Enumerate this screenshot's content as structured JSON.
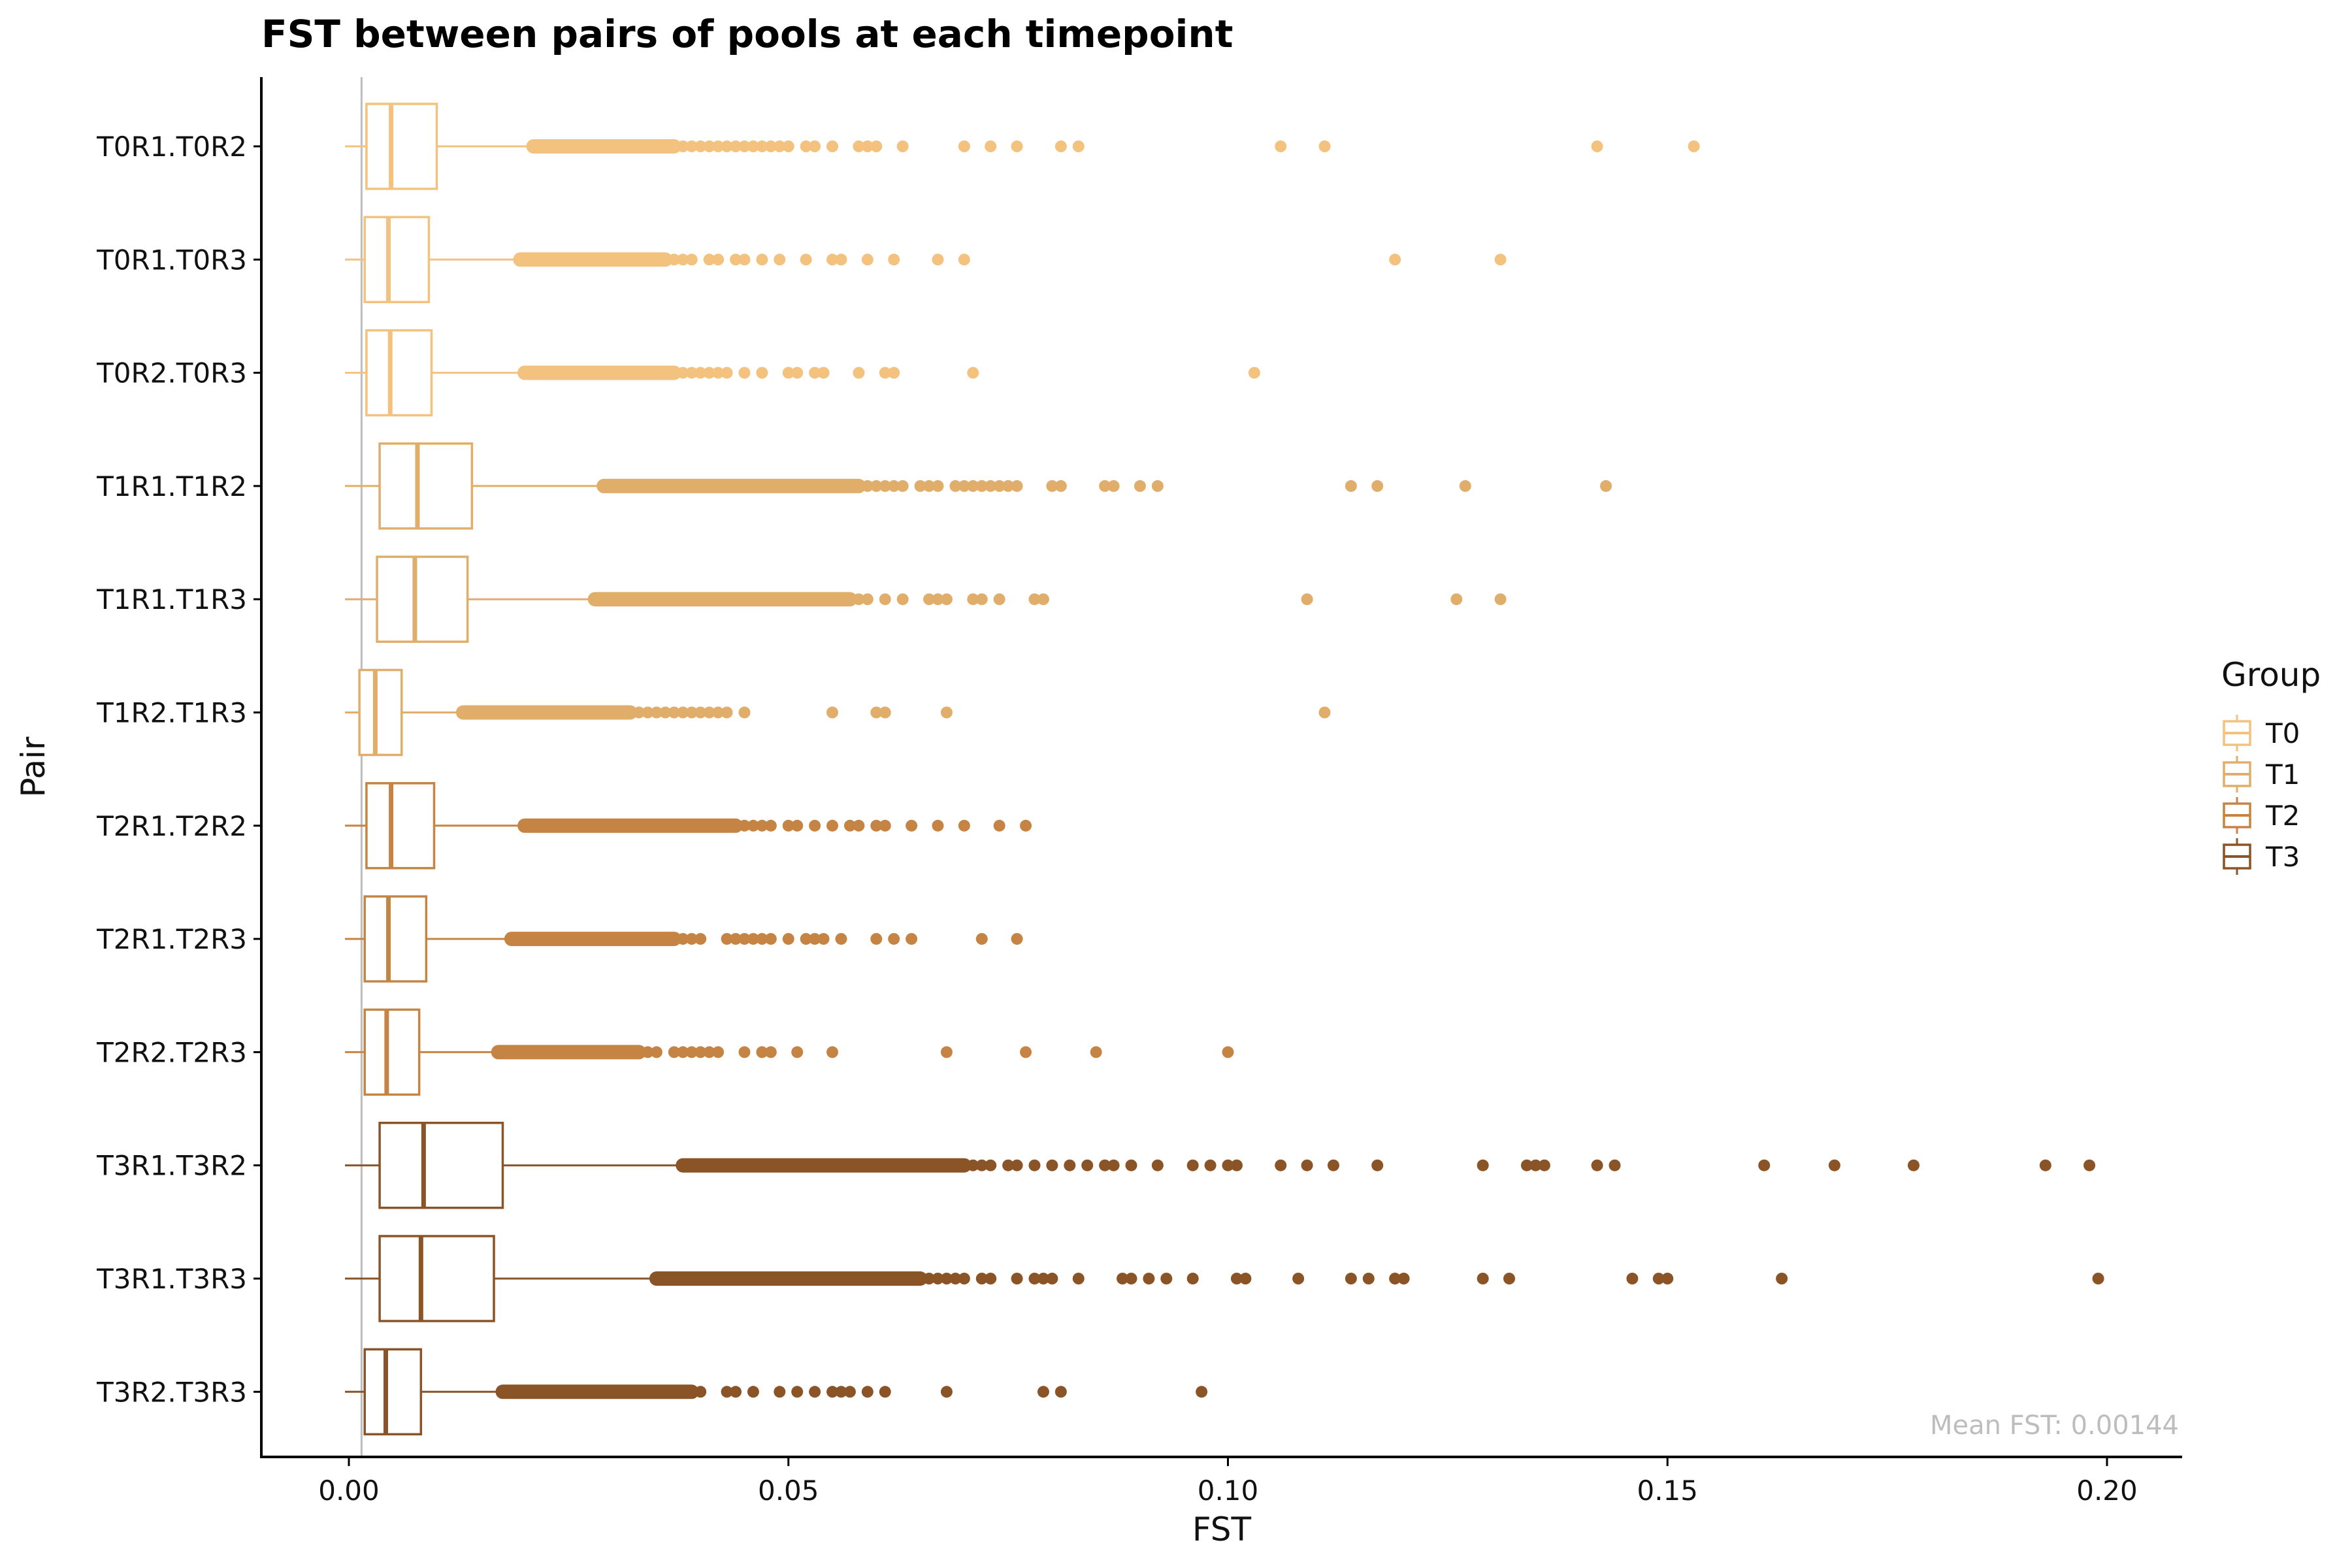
{
  "chart_data": {
    "type": "boxplot",
    "title": "FST between pairs of pools at each timepoint",
    "xlabel": "FST",
    "ylabel": "Pair",
    "xlim": [
      -0.01,
      0.21
    ],
    "xticks": [
      0.0,
      0.05,
      0.1,
      0.15,
      0.2
    ],
    "xtick_labels": [
      "0.00",
      "0.05",
      "0.10",
      "0.15",
      "0.20"
    ],
    "reference_line_x": 0.00144,
    "annotation": "Mean FST: 0.00144",
    "grid": false,
    "legend": {
      "title": "Group",
      "position": "right",
      "items": [
        {
          "label": "T0",
          "color": "#F2C27E"
        },
        {
          "label": "T1",
          "color": "#E0AD6A"
        },
        {
          "label": "T2",
          "color": "#C58443"
        },
        {
          "label": "T3",
          "color": "#8A5427"
        }
      ]
    },
    "categories": [
      "T0R1.T0R2",
      "T0R1.T0R3",
      "T0R2.T0R3",
      "T1R1.T1R2",
      "T1R1.T1R3",
      "T1R2.T1R3",
      "T2R1.T2R2",
      "T2R1.T2R3",
      "T2R2.T2R3",
      "T3R1.T3R2",
      "T3R1.T3R3",
      "T3R2.T3R3"
    ],
    "boxes": [
      {
        "pair": "T0R1.T0R2",
        "group": "T0",
        "min": 0.0,
        "q1": 0.002,
        "median": 0.0048,
        "q3": 0.01,
        "whisker_hi": 0.021,
        "dense_outliers": [
          0.021,
          0.037
        ],
        "outliers": [
          0.038,
          0.039,
          0.04,
          0.041,
          0.042,
          0.043,
          0.044,
          0.045,
          0.046,
          0.047,
          0.048,
          0.049,
          0.05,
          0.052,
          0.053,
          0.055,
          0.058,
          0.059,
          0.06,
          0.063,
          0.07,
          0.073,
          0.076,
          0.081,
          0.083,
          0.106,
          0.111,
          0.142,
          0.153
        ]
      },
      {
        "pair": "T0R1.T0R3",
        "group": "T0",
        "min": 0.0,
        "q1": 0.0018,
        "median": 0.0045,
        "q3": 0.0091,
        "whisker_hi": 0.0195,
        "dense_outliers": [
          0.0195,
          0.036
        ],
        "outliers": [
          0.037,
          0.038,
          0.039,
          0.041,
          0.042,
          0.044,
          0.045,
          0.047,
          0.049,
          0.052,
          0.055,
          0.056,
          0.059,
          0.062,
          0.067,
          0.07,
          0.119,
          0.131
        ]
      },
      {
        "pair": "T0R2.T0R3",
        "group": "T0",
        "min": 0.0,
        "q1": 0.002,
        "median": 0.0047,
        "q3": 0.0094,
        "whisker_hi": 0.02,
        "dense_outliers": [
          0.02,
          0.037
        ],
        "outliers": [
          0.038,
          0.039,
          0.04,
          0.041,
          0.042,
          0.043,
          0.045,
          0.047,
          0.05,
          0.051,
          0.053,
          0.054,
          0.058,
          0.061,
          0.062,
          0.071,
          0.103
        ]
      },
      {
        "pair": "T1R1.T1R2",
        "group": "T1",
        "min": 0.0,
        "q1": 0.0035,
        "median": 0.0078,
        "q3": 0.014,
        "whisker_hi": 0.029,
        "dense_outliers": [
          0.029,
          0.058
        ],
        "outliers": [
          0.059,
          0.06,
          0.061,
          0.062,
          0.063,
          0.065,
          0.066,
          0.067,
          0.069,
          0.07,
          0.071,
          0.072,
          0.073,
          0.074,
          0.075,
          0.076,
          0.08,
          0.081,
          0.086,
          0.087,
          0.09,
          0.092,
          0.114,
          0.117,
          0.127,
          0.143
        ]
      },
      {
        "pair": "T1R1.T1R3",
        "group": "T1",
        "min": 0.0,
        "q1": 0.0032,
        "median": 0.0075,
        "q3": 0.0135,
        "whisker_hi": 0.028,
        "dense_outliers": [
          0.028,
          0.057
        ],
        "outliers": [
          0.058,
          0.059,
          0.061,
          0.063,
          0.066,
          0.067,
          0.068,
          0.071,
          0.072,
          0.074,
          0.078,
          0.079,
          0.109,
          0.126,
          0.131
        ]
      },
      {
        "pair": "T1R2.T1R3",
        "group": "T1",
        "min": 0.0,
        "q1": 0.0012,
        "median": 0.003,
        "q3": 0.006,
        "whisker_hi": 0.013,
        "dense_outliers": [
          0.013,
          0.032
        ],
        "outliers": [
          0.033,
          0.034,
          0.035,
          0.036,
          0.037,
          0.038,
          0.039,
          0.04,
          0.041,
          0.042,
          0.043,
          0.045,
          0.055,
          0.06,
          0.061,
          0.068,
          0.111
        ]
      },
      {
        "pair": "T2R1.T2R2",
        "group": "T2",
        "min": 0.0,
        "q1": 0.002,
        "median": 0.0048,
        "q3": 0.0097,
        "whisker_hi": 0.02,
        "dense_outliers": [
          0.02,
          0.044
        ],
        "outliers": [
          0.045,
          0.046,
          0.047,
          0.048,
          0.05,
          0.051,
          0.053,
          0.055,
          0.057,
          0.058,
          0.06,
          0.061,
          0.064,
          0.067,
          0.07,
          0.074,
          0.077
        ]
      },
      {
        "pair": "T2R1.T2R3",
        "group": "T2",
        "min": 0.0,
        "q1": 0.0018,
        "median": 0.0045,
        "q3": 0.0088,
        "whisker_hi": 0.0185,
        "dense_outliers": [
          0.0185,
          0.037
        ],
        "outliers": [
          0.038,
          0.039,
          0.04,
          0.043,
          0.044,
          0.045,
          0.046,
          0.047,
          0.048,
          0.05,
          0.052,
          0.053,
          0.054,
          0.056,
          0.06,
          0.062,
          0.064,
          0.072,
          0.076
        ]
      },
      {
        "pair": "T2R2.T2R3",
        "group": "T2",
        "min": 0.0,
        "q1": 0.0018,
        "median": 0.0043,
        "q3": 0.008,
        "whisker_hi": 0.017,
        "dense_outliers": [
          0.017,
          0.033
        ],
        "outliers": [
          0.034,
          0.035,
          0.037,
          0.038,
          0.039,
          0.04,
          0.041,
          0.042,
          0.045,
          0.047,
          0.048,
          0.051,
          0.055,
          0.068,
          0.077,
          0.085,
          0.1
        ]
      },
      {
        "pair": "T3R1.T3R2",
        "group": "T3",
        "min": 0.0,
        "q1": 0.0035,
        "median": 0.0085,
        "q3": 0.0175,
        "whisker_hi": 0.038,
        "dense_outliers": [
          0.038,
          0.07
        ],
        "outliers": [
          0.071,
          0.072,
          0.073,
          0.075,
          0.076,
          0.078,
          0.08,
          0.082,
          0.084,
          0.086,
          0.087,
          0.089,
          0.092,
          0.096,
          0.098,
          0.1,
          0.101,
          0.106,
          0.109,
          0.112,
          0.117,
          0.129,
          0.134,
          0.135,
          0.136,
          0.142,
          0.144,
          0.161,
          0.169,
          0.178,
          0.193,
          0.198
        ]
      },
      {
        "pair": "T3R1.T3R3",
        "group": "T3",
        "min": 0.0,
        "q1": 0.0035,
        "median": 0.0082,
        "q3": 0.0165,
        "whisker_hi": 0.035,
        "dense_outliers": [
          0.035,
          0.065
        ],
        "outliers": [
          0.066,
          0.067,
          0.068,
          0.069,
          0.07,
          0.072,
          0.073,
          0.076,
          0.078,
          0.079,
          0.08,
          0.083,
          0.088,
          0.089,
          0.091,
          0.093,
          0.096,
          0.101,
          0.102,
          0.108,
          0.114,
          0.116,
          0.119,
          0.12,
          0.129,
          0.132,
          0.146,
          0.149,
          0.15,
          0.163,
          0.199
        ]
      },
      {
        "pair": "T3R2.T3R3",
        "group": "T3",
        "min": 0.0,
        "q1": 0.0018,
        "median": 0.0042,
        "q3": 0.0082,
        "whisker_hi": 0.0175,
        "dense_outliers": [
          0.0175,
          0.039
        ],
        "outliers": [
          0.04,
          0.043,
          0.044,
          0.046,
          0.049,
          0.051,
          0.053,
          0.055,
          0.056,
          0.057,
          0.059,
          0.061,
          0.068,
          0.079,
          0.081,
          0.097
        ]
      }
    ]
  }
}
